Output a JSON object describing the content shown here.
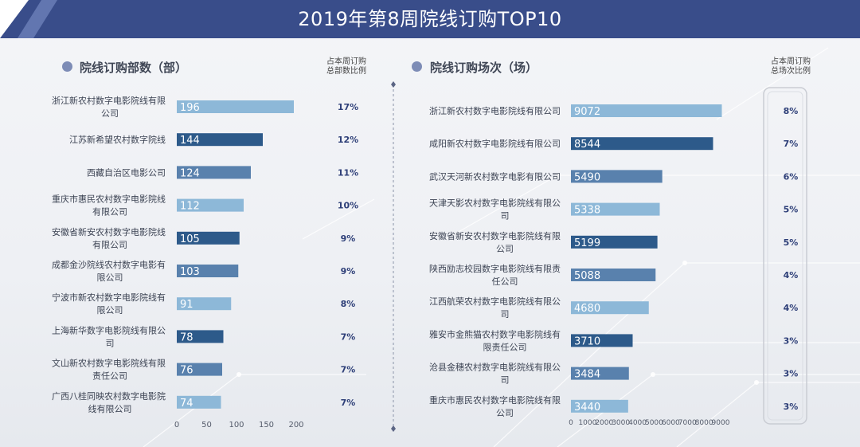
{
  "title": "2019年第8周院线订购TOP10",
  "left": {
    "section_title": "院线订购部数（部）",
    "ratio_header_line1": "占本周订购",
    "ratio_header_line2": "总部数比例"
  },
  "right": {
    "section_title": "院线订购场次（场）",
    "ratio_header_line1": "占本周订购",
    "ratio_header_line2": "总场次比例"
  },
  "colors": {
    "header": "#394d8a",
    "bar_light": "#8db8d8",
    "bar_dark": "#2d5a8a",
    "bar_mid": "#5981ad",
    "ratio_text": "#2e3f78"
  },
  "chart_data": [
    {
      "type": "bar",
      "orientation": "horizontal",
      "title": "院线订购部数（部）",
      "categories": [
        [
          "浙江新农村数字电影院线有限",
          "公司"
        ],
        [
          "江苏新希望农村数字院线"
        ],
        [
          "西藏自治区电影公司"
        ],
        [
          "重庆市惠民农村数字电影院线",
          "有限公司"
        ],
        [
          "安徽省新安农村数字电影院线",
          "有限公司"
        ],
        [
          "成都金沙院线农村数字电影有",
          "限公司"
        ],
        [
          "宁波市新农村数字电影院线有",
          "限公司"
        ],
        [
          "上海新华数字电影院线有限公",
          "司"
        ],
        [
          "文山新农村数字电影院线有限",
          "责任公司"
        ],
        [
          "广西八桂同映农村数字电影院",
          "线有限公司"
        ]
      ],
      "values": [
        196,
        144,
        124,
        112,
        105,
        103,
        91,
        78,
        76,
        74
      ],
      "ratios": [
        "17%",
        "12%",
        "11%",
        "10%",
        "9%",
        "9%",
        "8%",
        "7%",
        "7%",
        "7%"
      ],
      "xlim": [
        0,
        200
      ],
      "xticks": [
        "0",
        "50",
        "100",
        "150",
        "200"
      ]
    },
    {
      "type": "bar",
      "orientation": "horizontal",
      "title": "院线订购场次（场）",
      "categories": [
        [
          "浙江新农村数字电影院线有限公司"
        ],
        [
          "咸阳新农村数字电影院线有限公司"
        ],
        [
          "武汉天河新农村数字电影有限公司"
        ],
        [
          "天津天影农村数字电影院线有限公",
          "司"
        ],
        [
          "安徽省新安农村数字电影院线有限",
          "公司"
        ],
        [
          "陕西励志校园数字电影院线有限责",
          "任公司"
        ],
        [
          "江西航荣农村数字电影院线有限公",
          "司"
        ],
        [
          "雅安市金熊猫农村数字电影院线有",
          "限责任公司"
        ],
        [
          "沧县金穗农村数字电影院线有限公",
          "司"
        ],
        [
          "重庆市惠民农村数字电影院线有限",
          "公司"
        ]
      ],
      "values": [
        9072,
        8544,
        5490,
        5338,
        5199,
        5088,
        4680,
        3710,
        3484,
        3440
      ],
      "ratios": [
        "8%",
        "7%",
        "6%",
        "5%",
        "5%",
        "4%",
        "4%",
        "3%",
        "3%",
        "3%"
      ],
      "xlim": [
        0,
        9000
      ],
      "xticks": [
        "0",
        "1000",
        "2000",
        "3000",
        "4000",
        "5000",
        "6000",
        "7000",
        "8000",
        "9000"
      ]
    }
  ]
}
